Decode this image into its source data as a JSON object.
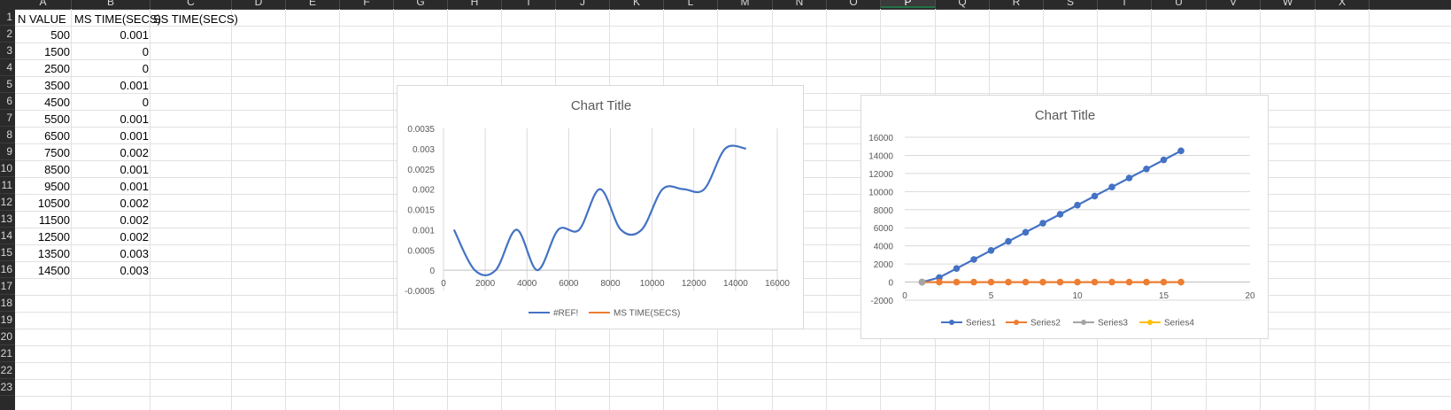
{
  "spreadsheet": {
    "columns": [
      "A",
      "B",
      "C",
      "D",
      "E",
      "F",
      "G",
      "H",
      "I",
      "J",
      "K",
      "L",
      "M",
      "N",
      "O",
      "P",
      "Q",
      "R",
      "S",
      "T",
      "U",
      "V",
      "W",
      "X"
    ],
    "selected_column": "P",
    "rows": [
      "1",
      "2",
      "3",
      "4",
      "5",
      "6",
      "7",
      "8",
      "9",
      "10",
      "11",
      "12",
      "13",
      "14",
      "15",
      "16",
      "17",
      "18",
      "19",
      "20",
      "21",
      "22",
      "23"
    ],
    "headers": {
      "a1": "N VALUE",
      "b1": "MS TIME(SECS)",
      "c1": "SS TIME(SECS)"
    },
    "n_values": [
      "500",
      "1500",
      "2500",
      "3500",
      "4500",
      "5500",
      "6500",
      "7500",
      "8500",
      "9500",
      "10500",
      "11500",
      "12500",
      "13500",
      "14500"
    ],
    "ms_times": [
      "0.001",
      "0",
      "0",
      "0.001",
      "0",
      "0.001",
      "0.001",
      "0.002",
      "0.001",
      "0.001",
      "0.002",
      "0.002",
      "0.002",
      "0.003",
      "0.003"
    ]
  },
  "chart_data": [
    {
      "type": "line",
      "title": "Chart Title",
      "x_ticks": [
        "0",
        "2000",
        "4000",
        "6000",
        "8000",
        "10000",
        "12000",
        "14000",
        "16000"
      ],
      "y_ticks": [
        "-0.0005",
        "0",
        "0.0005",
        "0.001",
        "0.0015",
        "0.002",
        "0.0025",
        "0.003",
        "0.0035"
      ],
      "xlim": [
        0,
        16000
      ],
      "ylim": [
        -0.0005,
        0.0035
      ],
      "grid": "vertical gridlines",
      "legend_position": "bottom",
      "series": [
        {
          "name": "#REF!",
          "color": "#4472c4",
          "smooth": true,
          "x": [
            500,
            1500,
            2500,
            3500,
            4500,
            5500,
            6500,
            7500,
            8500,
            9500,
            10500,
            11500,
            12500,
            13500,
            14500
          ],
          "values": [
            0.001,
            0,
            0,
            0.001,
            0,
            0.001,
            0.001,
            0.002,
            0.001,
            0.001,
            0.002,
            0.002,
            0.002,
            0.003,
            0.003
          ]
        },
        {
          "name": "MS TIME(SECS)",
          "color": "#ed7d31",
          "x": [],
          "values": []
        }
      ]
    },
    {
      "type": "line",
      "title": "Chart Title",
      "x_ticks": [
        "0",
        "5",
        "10",
        "15",
        "20"
      ],
      "y_ticks": [
        "-2000",
        "0",
        "2000",
        "4000",
        "6000",
        "8000",
        "10000",
        "12000",
        "14000",
        "16000"
      ],
      "xlim": [
        0,
        20
      ],
      "ylim": [
        -2000,
        16000
      ],
      "grid": "horizontal gridlines",
      "legend_position": "bottom",
      "series": [
        {
          "name": "Series1",
          "color": "#4472c4",
          "markers": true,
          "x": [
            1,
            2,
            3,
            4,
            5,
            6,
            7,
            8,
            9,
            10,
            11,
            12,
            13,
            14,
            15,
            16
          ],
          "values": [
            0,
            500,
            1500,
            2500,
            3500,
            4500,
            5500,
            6500,
            7500,
            8500,
            9500,
            10500,
            11500,
            12500,
            13500,
            14500
          ]
        },
        {
          "name": "Series2",
          "color": "#ed7d31",
          "markers": true,
          "x": [
            1,
            2,
            3,
            4,
            5,
            6,
            7,
            8,
            9,
            10,
            11,
            12,
            13,
            14,
            15,
            16
          ],
          "values": [
            0,
            0.001,
            0,
            0,
            0.001,
            0,
            0.001,
            0.001,
            0.002,
            0.001,
            0.001,
            0.002,
            0.002,
            0.002,
            0.003,
            0.003
          ]
        },
        {
          "name": "Series3",
          "color": "#a5a5a5",
          "markers": true,
          "x": [
            1
          ],
          "values": [
            0
          ]
        },
        {
          "name": "Series4",
          "color": "#ffc000",
          "markers": true,
          "x": [],
          "values": []
        }
      ]
    }
  ]
}
